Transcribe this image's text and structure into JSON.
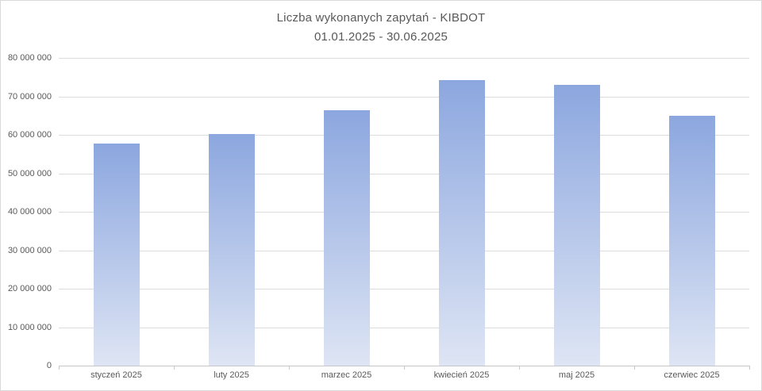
{
  "chart": {
    "title": "Liczba wykonanych zapytań - KIBDOT",
    "subtitle": "01.01.2025 - 30.06.2025"
  },
  "chart_data": {
    "type": "bar",
    "title": "Liczba wykonanych zapytań - KIBDOT",
    "subtitle": "01.01.2025 - 30.06.2025",
    "categories": [
      "styczeń 2025",
      "luty 2025",
      "marzec 2025",
      "kwiecień 2025",
      "maj 2025",
      "czerwiec 2025"
    ],
    "values": [
      57700000,
      60200000,
      66300000,
      74200000,
      72900000,
      64900000
    ],
    "xlabel": "",
    "ylabel": "",
    "ylim": [
      0,
      80000000
    ],
    "ytick_step": 10000000,
    "ytick_labels": [
      "0",
      "10 000 000",
      "20 000 000",
      "30 000 000",
      "40 000 000",
      "50 000 000",
      "60 000 000",
      "70 000 000",
      "80 000 000"
    ],
    "grid": true,
    "legend": "none",
    "colors": {
      "bar_gradient_top": "#8ca7df",
      "bar_gradient_bottom": "#dee5f4",
      "gridline": "#dcdcdc",
      "axis_line": "#c6c6c6",
      "text": "#595959",
      "background": "#ffffff",
      "frame_border": "#d9d9d9"
    }
  }
}
